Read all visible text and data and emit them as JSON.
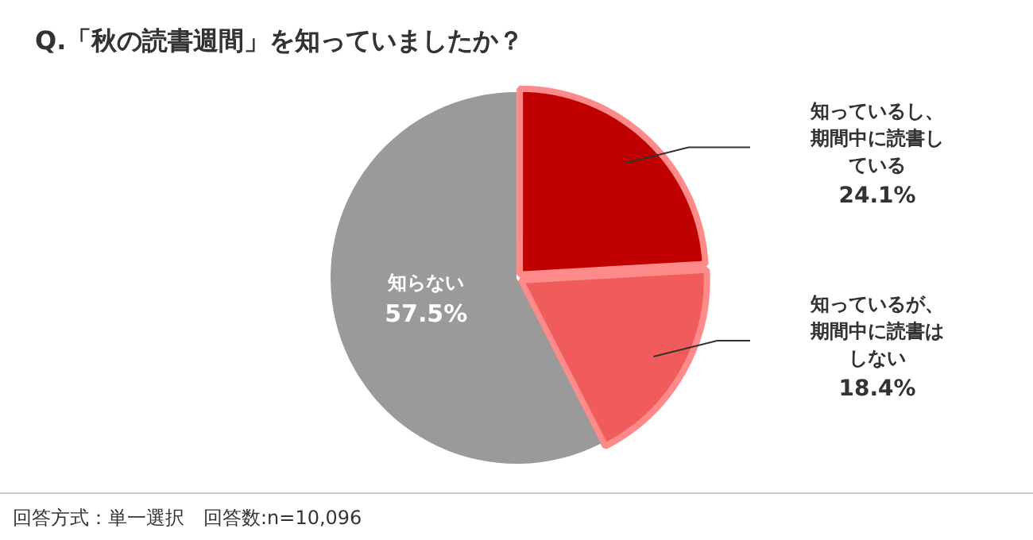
{
  "chart_data": {
    "type": "pie",
    "title": "Q.「秋の読書週間」を知っていましたか？",
    "categories": [
      "知っているし、期間中に読書している",
      "知っているが、期間中に読書はしない",
      "知らない"
    ],
    "values": [
      24.1,
      18.4,
      57.5
    ],
    "value_labels": [
      "24.1%",
      "18.4%",
      "57.5%"
    ],
    "colors": [
      "#c00000",
      "#f05c5c",
      "#9a9a9a"
    ],
    "legend": false,
    "annotations": [
      "回答方式：単一選択　回答数:n=10,096"
    ]
  }
}
